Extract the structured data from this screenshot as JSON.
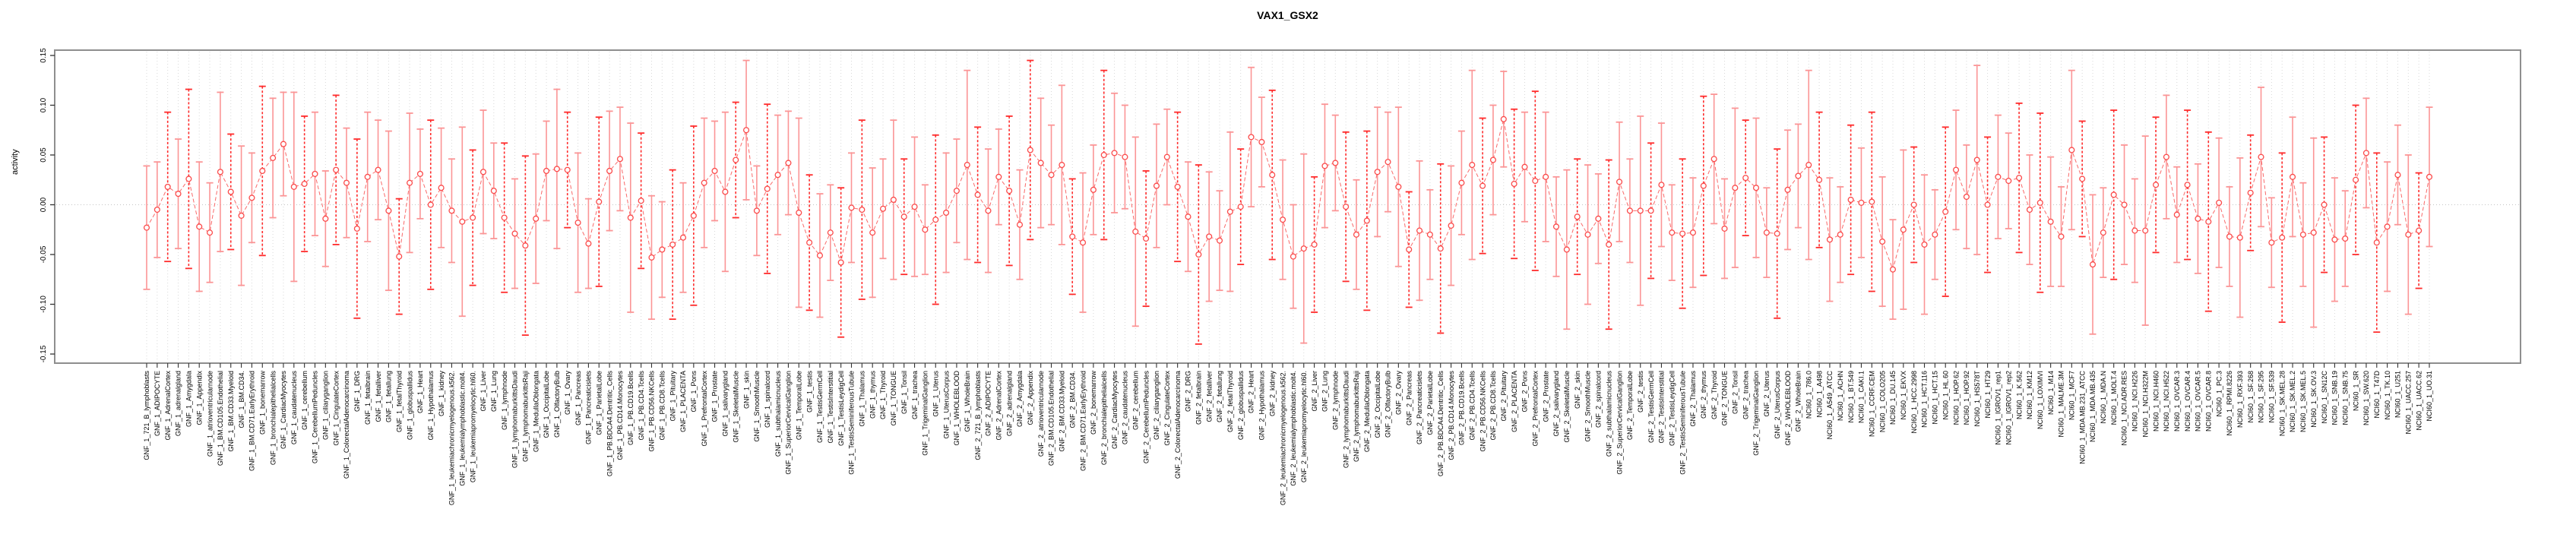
{
  "title": "VAX1_GSX2",
  "y_axis_title": "activity",
  "chart_data": {
    "type": "line",
    "subtype": "point-estimates-with-error-bars",
    "title": "VAX1_GSX2",
    "xlabel": "",
    "ylabel": "activity",
    "ylim": [
      -0.15,
      0.15
    ],
    "ytick_labels": [
      "0.15",
      "0.10",
      "0.05",
      "0.00",
      "-0.05",
      "-0.10",
      "-0.15"
    ],
    "ytick_values": [
      0.15,
      0.1,
      0.05,
      0.0,
      -0.05,
      -0.1,
      -0.15
    ],
    "grid": "vertical-dotted-per-category-plus-zero-line",
    "legend_position": "none",
    "group_prefixes": [
      "GNF_1_",
      "GNF_2_",
      "NCI60_1_"
    ],
    "gnf_tissues": [
      "721_B_lymphoblasts",
      "ADIPOCYTE",
      "AdrenalCortex",
      "adrenalgland",
      "Amygdala",
      "Appendix",
      "atrioventricularnode",
      "BM.CD105.Endothelial",
      "BM.CD33.Myeloid",
      "BM.CD34.",
      "BM.CD71.EarlyErythroid",
      "bonemarrow",
      "bronchialepithelialcells",
      "CardiacMyocytes",
      "caudatenucleus",
      "cerebellum",
      "CerebellumPeduncles",
      "ciliaryganglion",
      "CingulateCortex",
      "ColorectalAdenocarcinoma",
      "DRG",
      "fetalbrain",
      "fetalliver",
      "fetallung",
      "fetalThyroid",
      "globuspallidus",
      "Heart",
      "Hypothalamus",
      "kidney",
      "leukemiachronicmyelogenous.k562.",
      "leukemialymphoblastic.molt4.",
      "leukemiapromyelocytic.hl60.",
      "Liver",
      "Lung",
      "lymphnode",
      "lymphomaburkittsDaudi",
      "lymphomaburkittsRaji",
      "MedullaOblongata",
      "OccipitalLobe",
      "OlfactoryBulb",
      "Ovary",
      "Pancreas",
      "Pancreaticislets",
      "ParietalLobe",
      "PB.BDCA4.Dentritic_Cells",
      "PB.CD14.Monocytes",
      "PB.CD19.Bcells",
      "PB.CD4.Tcells",
      "PB.CD56.NKCells",
      "PB.CD8.Tcells",
      "Pituitary",
      "PLACENTA",
      "Pons",
      "PrefrontalCortex",
      "Prostate",
      "salivarygland",
      "SkeletalMuscle",
      "skin",
      "SmoothMuscle",
      "spinalcord",
      "subthalamicnucleus",
      "SuperiorCervicalGanglion",
      "TemporalLobe",
      "testis",
      "TestisGermCell",
      "TestisInterstitial",
      "TestisLeydigCell",
      "TestisSeminiferousTubule",
      "Thalamus",
      "thymus",
      "Thyroid",
      "TONGUE",
      "Tonsil",
      "trachea",
      "TrigeminalGanglion",
      "Uterus",
      "UterusCorpus",
      "WHOLEBLOOD",
      "WholeBrain"
    ],
    "nci60_lines": [
      "786.0",
      "A498",
      "A549_ATCC",
      "ACHN",
      "BT.549",
      "CAKI.1",
      "CCRF.CEM",
      "COLO205",
      "DU.145",
      "EKVX",
      "HCC.2998",
      "HCT.116",
      "HCT.15",
      "HL.60",
      "HOP.62",
      "HOP.92",
      "HS578T",
      "HT29",
      "IGROV1_rep1",
      "IGROV1_rep2",
      "K.562",
      "KM12",
      "LOXIMVI",
      "M14",
      "MALME.3M",
      "MCF7",
      "MDA.MB.231_ATCC",
      "MDA.MB.435",
      "MDA.N",
      "MOLT.4",
      "NCI.ADR.RES",
      "NCI.H226",
      "NCI.H322M",
      "NCI.H460",
      "NCI.H522",
      "OVCAR.3",
      "OVCAR.4",
      "OVCAR.5",
      "OVCAR.8",
      "PC.3",
      "RPMI.8226",
      "RXF.393",
      "SF.268",
      "SF.295",
      "SF.539",
      "SK.MEL.28",
      "SK.MEL.2",
      "SK.MEL.5",
      "SK.OV.3",
      "SN12C",
      "SNB.19",
      "SNB.75",
      "SR",
      "SW.620",
      "T47D",
      "TK.10",
      "U251",
      "UACC.257",
      "UACC.62",
      "UO.31"
    ],
    "values": [
      -0.023,
      -0.005,
      0.018,
      0.011,
      0.026,
      -0.022,
      -0.028,
      0.033,
      0.013,
      -0.011,
      0.007,
      0.034,
      0.047,
      0.061,
      0.018,
      0.021,
      0.031,
      -0.014,
      0.035,
      0.022,
      -0.024,
      0.028,
      0.035,
      -0.006,
      -0.052,
      0.022,
      0.031,
      0.0,
      0.017,
      -0.006,
      -0.017,
      -0.013,
      0.033,
      0.014,
      -0.013,
      -0.029,
      -0.041,
      -0.014,
      0.034,
      0.036,
      0.035,
      -0.018,
      -0.039,
      0.003,
      0.034,
      0.046,
      -0.013,
      0.004,
      -0.053,
      -0.045,
      -0.04,
      -0.033,
      -0.011,
      0.022,
      0.034,
      0.013,
      0.045,
      0.075,
      -0.006,
      0.016,
      0.03,
      0.042,
      -0.008,
      -0.038,
      -0.051,
      -0.028,
      -0.058,
      -0.003,
      -0.005,
      -0.028,
      -0.004,
      0.005,
      -0.012,
      -0.002,
      -0.025,
      -0.015,
      -0.008,
      0.014,
      0.04,
      0.01,
      -0.006,
      0.028,
      0.014,
      -0.02,
      0.055,
      0.042,
      0.03,
      0.04,
      -0.032,
      -0.038,
      0.015,
      0.05,
      0.052,
      0.048,
      -0.027,
      -0.034,
      0.019,
      0.048,
      0.018,
      -0.012,
      -0.05,
      -0.032,
      -0.036,
      -0.007,
      -0.002,
      0.068,
      0.063,
      0.03,
      -0.015,
      -0.052,
      -0.044,
      -0.04,
      0.039,
      0.042,
      -0.002,
      -0.03,
      -0.016,
      0.033,
      0.043,
      0.018,
      -0.045,
      -0.026,
      -0.03,
      -0.044,
      -0.021,
      0.022,
      0.04,
      0.019,
      0.045,
      0.086,
      0.021,
      0.038,
      0.024,
      0.028,
      -0.022,
      -0.045,
      -0.012,
      -0.03,
      -0.014,
      -0.04,
      0.023,
      -0.006,
      -0.006,
      -0.006,
      0.02,
      -0.028,
      -0.029,
      -0.028,
      0.019,
      0.046,
      -0.024,
      0.017,
      0.027,
      0.017,
      -0.028,
      -0.029,
      0.015,
      0.029,
      0.04,
      0.025,
      -0.035,
      -0.03,
      0.005,
      0.002,
      0.003,
      -0.037,
      -0.065,
      -0.025,
      0.0,
      -0.04,
      -0.03,
      -0.007,
      0.035,
      0.008,
      0.045,
      0.0,
      0.028,
      0.024,
      0.027,
      -0.005,
      0.002,
      -0.017,
      -0.032,
      0.055,
      0.026,
      -0.06,
      -0.028,
      0.01,
      0.0,
      -0.026,
      -0.026,
      0.02,
      0.048,
      -0.01,
      0.02,
      -0.014,
      -0.017,
      0.002,
      -0.032,
      -0.033,
      0.012,
      0.048,
      -0.038,
      -0.033,
      0.028,
      -0.03,
      -0.028,
      0.0,
      -0.035,
      -0.034,
      0.025,
      0.052,
      -0.038,
      -0.022,
      0.03,
      -0.03,
      -0.026,
      0.028
    ],
    "ci_halfwidths": [
      0.062,
      0.048,
      0.075,
      0.055,
      0.09,
      0.065,
      0.05,
      0.08,
      0.058,
      0.07,
      0.045,
      0.085,
      0.06,
      0.052,
      0.095,
      0.068,
      0.062,
      0.048,
      0.075,
      0.055,
      0.09,
      0.065,
      0.05,
      0.08,
      0.058,
      0.07,
      0.045,
      0.085,
      0.06,
      0.052,
      0.095,
      0.068,
      0.062,
      0.048,
      0.075,
      0.055,
      0.09,
      0.065,
      0.05,
      0.08,
      0.058,
      0.07,
      0.045,
      0.085,
      0.06,
      0.052,
      0.095,
      0.068,
      0.062,
      0.048,
      0.075,
      0.055,
      0.09,
      0.065,
      0.05,
      0.08,
      0.058,
      0.07,
      0.045,
      0.085,
      0.06,
      0.052,
      0.095,
      0.068,
      0.062,
      0.048,
      0.075,
      0.055,
      0.09,
      0.065,
      0.05,
      0.08,
      0.058,
      0.07,
      0.045,
      0.085,
      0.06,
      0.052,
      0.095,
      0.068,
      0.062,
      0.048,
      0.075,
      0.055,
      0.09,
      0.065,
      0.05,
      0.08,
      0.058,
      0.07,
      0.045,
      0.085,
      0.06,
      0.052,
      0.095,
      0.068,
      0.062,
      0.048,
      0.075,
      0.055,
      0.09,
      0.065,
      0.05,
      0.08,
      0.058,
      0.07,
      0.045,
      0.085,
      0.06,
      0.052,
      0.095,
      0.068,
      0.062,
      0.048,
      0.075,
      0.055,
      0.09,
      0.065,
      0.05,
      0.08,
      0.058,
      0.07,
      0.045,
      0.085,
      0.06,
      0.052,
      0.095,
      0.068,
      0.055,
      0.048,
      0.075,
      0.055,
      0.09,
      0.065,
      0.05,
      0.08,
      0.058,
      0.07,
      0.045,
      0.085,
      0.06,
      0.052,
      0.095,
      0.068,
      0.062,
      0.048,
      0.075,
      0.055,
      0.09,
      0.065,
      0.05,
      0.08,
      0.058,
      0.07,
      0.045,
      0.085,
      0.06,
      0.052,
      0.095,
      0.068,
      0.062,
      0.048,
      0.075,
      0.055,
      0.09,
      0.065,
      0.05,
      0.08,
      0.058,
      0.07,
      0.045,
      0.085,
      0.06,
      0.052,
      0.095,
      0.068,
      0.062,
      0.048,
      0.075,
      0.055,
      0.09,
      0.065,
      0.05,
      0.08,
      0.058,
      0.07,
      0.045,
      0.085,
      0.06,
      0.052,
      0.095,
      0.068,
      0.062,
      0.048,
      0.075,
      0.055,
      0.09,
      0.065,
      0.05,
      0.08,
      0.058,
      0.07,
      0.045,
      0.085,
      0.06,
      0.052,
      0.095,
      0.068,
      0.062,
      0.048,
      0.075,
      0.055,
      0.09,
      0.065,
      0.05,
      0.08,
      0.058,
      0.07
    ],
    "bar_style_pattern": "lldldllldlldllld",
    "colors": {
      "bar_light": "#fb9596",
      "bar_dark": "#ff2b2b",
      "point_stroke": "#fb4b4b",
      "point_fill": "#ffffff",
      "connect_line": "#f96a6a",
      "grid": "#d8d8d8",
      "zero_line": "#c4c4c4",
      "box_border": "#8e8e8e",
      "tick": "#333333",
      "label_text": "#000000"
    }
  }
}
